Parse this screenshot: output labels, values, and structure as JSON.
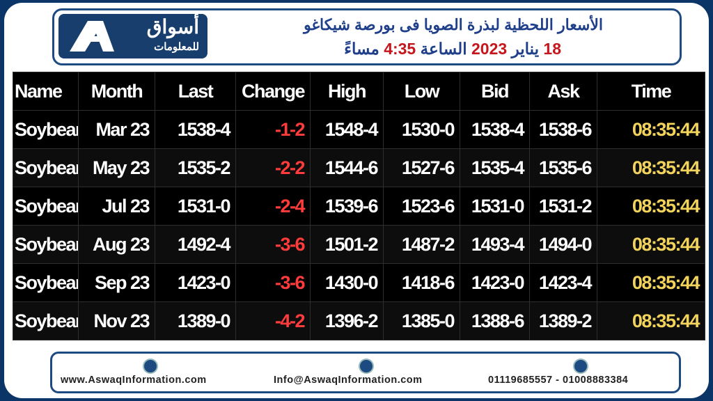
{
  "header": {
    "logo": {
      "name": "أسواق",
      "subtitle": "للمعلومات"
    },
    "title": "الأسعار اللحظية لبذرة الصويا فى بورصة شيكاغو",
    "subtitle": [
      {
        "text": "18",
        "accent": true
      },
      {
        "text": "يناير",
        "accent": false
      },
      {
        "text": "2023",
        "accent": true
      },
      {
        "text": "الساعة",
        "accent": false
      },
      {
        "text": "4:35",
        "accent": true
      },
      {
        "text": "مساءً",
        "accent": false
      }
    ]
  },
  "table": {
    "columns": [
      "Name",
      "Month",
      "Last",
      "Change",
      "High",
      "Low",
      "Bid",
      "Ask",
      "Time"
    ],
    "rows": [
      [
        "Soybean",
        "Mar 23",
        "1538-4",
        "-1-2",
        "1548-4",
        "1530-0",
        "1538-4",
        "1538-6",
        "08:35:44"
      ],
      [
        "Soybean",
        "May 23",
        "1535-2",
        "-2-2",
        "1544-6",
        "1527-6",
        "1535-4",
        "1535-6",
        "08:35:44"
      ],
      [
        "Soybean",
        "Jul 23",
        "1531-0",
        "-2-4",
        "1539-6",
        "1523-6",
        "1531-0",
        "1531-2",
        "08:35:44"
      ],
      [
        "Soybean",
        "Aug 23",
        "1492-4",
        "-3-6",
        "1501-2",
        "1487-2",
        "1493-4",
        "1494-0",
        "08:35:44"
      ],
      [
        "Soybean",
        "Sep 23",
        "1423-0",
        "-3-6",
        "1430-0",
        "1418-6",
        "1423-0",
        "1423-4",
        "08:35:44"
      ],
      [
        "Soybean",
        "Nov 23",
        "1389-0",
        "-4-2",
        "1396-2",
        "1385-0",
        "1388-6",
        "1389-2",
        "08:35:44"
      ]
    ]
  },
  "footer": {
    "website": "www.AswaqInformation.com",
    "email": "Info@AswaqInformation.com",
    "phone": "01119685557 - 01008883384"
  }
}
